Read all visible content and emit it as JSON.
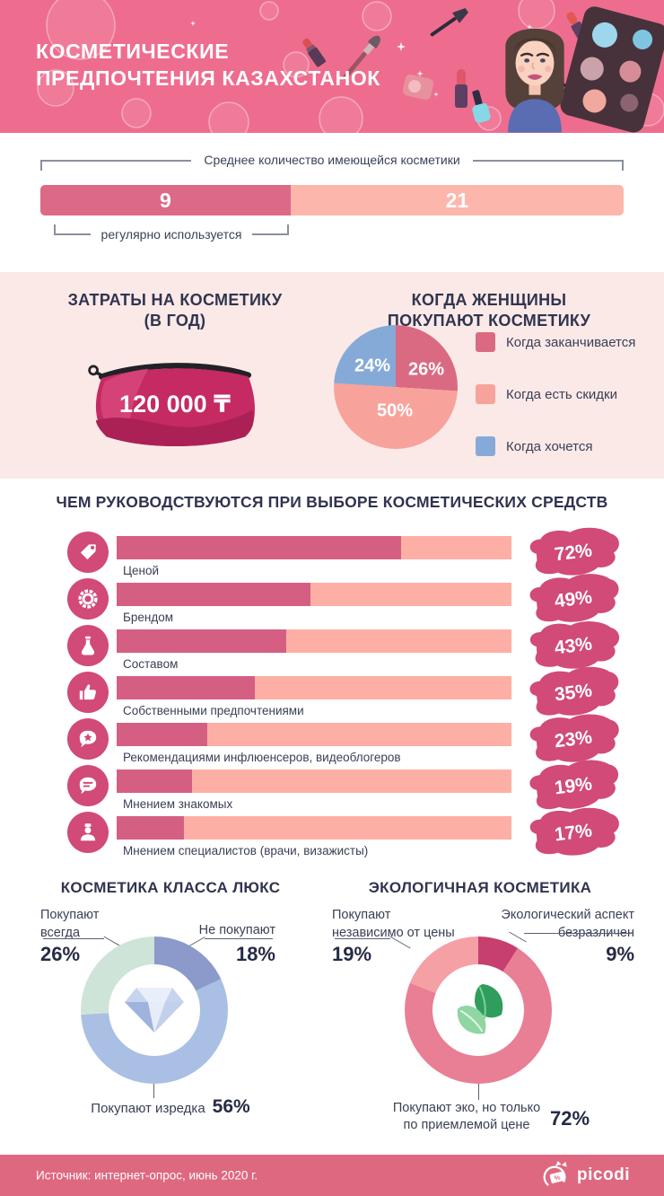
{
  "colors": {
    "header_bg": "#ee6d8e",
    "section_bg": "#fbe9e7",
    "footer_bg": "#de6880",
    "accent_raspberry": "#d14a78",
    "title_navy": "#30344f"
  },
  "header": {
    "title_lines": [
      "КОСМЕТИЧЕСКИЕ",
      "ПРЕДПОЧТЕНИЯ КАЗАХСТАНОК"
    ]
  },
  "spending": {
    "title_lines": [
      "ЗАТРАТЫ НА КОСМЕТИКУ",
      "(В ГОД)"
    ],
    "amount": "120 000 ₸"
  },
  "when_buy": {
    "title_lines": [
      "КОГДА ЖЕНЩИНЫ",
      "ПОКУПАЮТ КОСМЕТИКУ"
    ]
  },
  "lux_labels": {
    "always_lines": [
      "Покупают",
      "всегда"
    ],
    "never": "Не покупают",
    "sometimes": "Покупают изредка"
  },
  "eco_labels": {
    "indep_lines": [
      "Покупают",
      "независимо от цены"
    ],
    "indiff_lines": [
      "Экологический аспект",
      "безразличен"
    ],
    "eco_price_lines": [
      "Покупают эко, но только",
      "по приемлемой цене"
    ]
  },
  "footer": {
    "source": "Источник: интернет-опрос, июнь 2020 г.",
    "brand": "picodi"
  },
  "chart_data": [
    {
      "id": "owned-vs-used-bar",
      "type": "bar",
      "title": "Среднее количество имеющейся косметики",
      "annotation": "регулярно используется",
      "values": {
        "regularly_used": 9,
        "owned_total": 21
      },
      "used_width_pct": 42.9,
      "colors": {
        "used": "#dd6988",
        "owned": "#fdb6ab"
      }
    },
    {
      "id": "when-women-buy-pie",
      "type": "pie",
      "title": "КОГДА ЖЕНЩИНЫ ПОКУПАЮТ КОСМЕТИКУ",
      "start_angle_deg": 0,
      "direction": "clockwise",
      "legend_position": "right",
      "slices": [
        {
          "label": "Когда заканчивается",
          "value": 26,
          "color": "#d96a82"
        },
        {
          "label": "Когда есть скидки",
          "value": 50,
          "color": "#f7a39c"
        },
        {
          "label": "Когда хочется",
          "value": 24,
          "color": "#86aad7"
        }
      ]
    },
    {
      "id": "choice-factors-bars",
      "type": "bar",
      "title": "ЧЕМ РУКОВОДСТВУЮТСЯ ПРИ ВЫБОРЕ КОСМЕТИЧЕСКИХ СРЕДСТВ",
      "unit": "%",
      "xlim": [
        0,
        100
      ],
      "orientation": "horizontal",
      "categories": [
        "Ценой",
        "Брендом",
        "Составом",
        "Собственными предпочтениями",
        "Рекомендациями инфлюенсеров, видеоблогеров",
        "Мнением знакомых",
        "Мнением специалистов (врачи, визажисты)"
      ],
      "values": [
        72,
        49,
        43,
        35,
        23,
        19,
        17
      ],
      "icons": [
        "tag-icon",
        "brand-badge-icon",
        "flask-icon",
        "thumbs-up-icon",
        "star-bubble-icon",
        "chat-bubble-icon",
        "specialist-icon"
      ],
      "bar_colors": {
        "fill": "#d55f83",
        "track": "#fdafa5"
      }
    },
    {
      "id": "luxury-cosmetics-donut",
      "type": "pie",
      "subtype": "donut",
      "title": "КОСМЕТИКА КЛАССА ЛЮКС",
      "center_icon": "diamond-icon",
      "start_angle_deg": 0,
      "direction": "clockwise",
      "slices": [
        {
          "label": "Не покупают",
          "value": 18,
          "color": "#8c99cb"
        },
        {
          "label": "Покупают изредка",
          "value": 56,
          "color": "#a9bfe4"
        },
        {
          "label": "Покупают всегда",
          "value": 26,
          "color": "#cfe4d9"
        }
      ]
    },
    {
      "id": "eco-cosmetics-donut",
      "type": "pie",
      "subtype": "donut",
      "title": "ЭКОЛОГИЧНАЯ КОСМЕТИКА",
      "center_icon": "leaves-icon",
      "start_angle_deg": 0,
      "direction": "clockwise",
      "slices": [
        {
          "label": "Экологический аспект безразличен",
          "value": 9,
          "color": "#c73f6e"
        },
        {
          "label": "Покупают эко, но только по приемлемой цене",
          "value": 72,
          "color": "#e87f95"
        },
        {
          "label": "Покупают независимо от цены",
          "value": 19,
          "color": "#f5a0a5"
        }
      ]
    }
  ]
}
